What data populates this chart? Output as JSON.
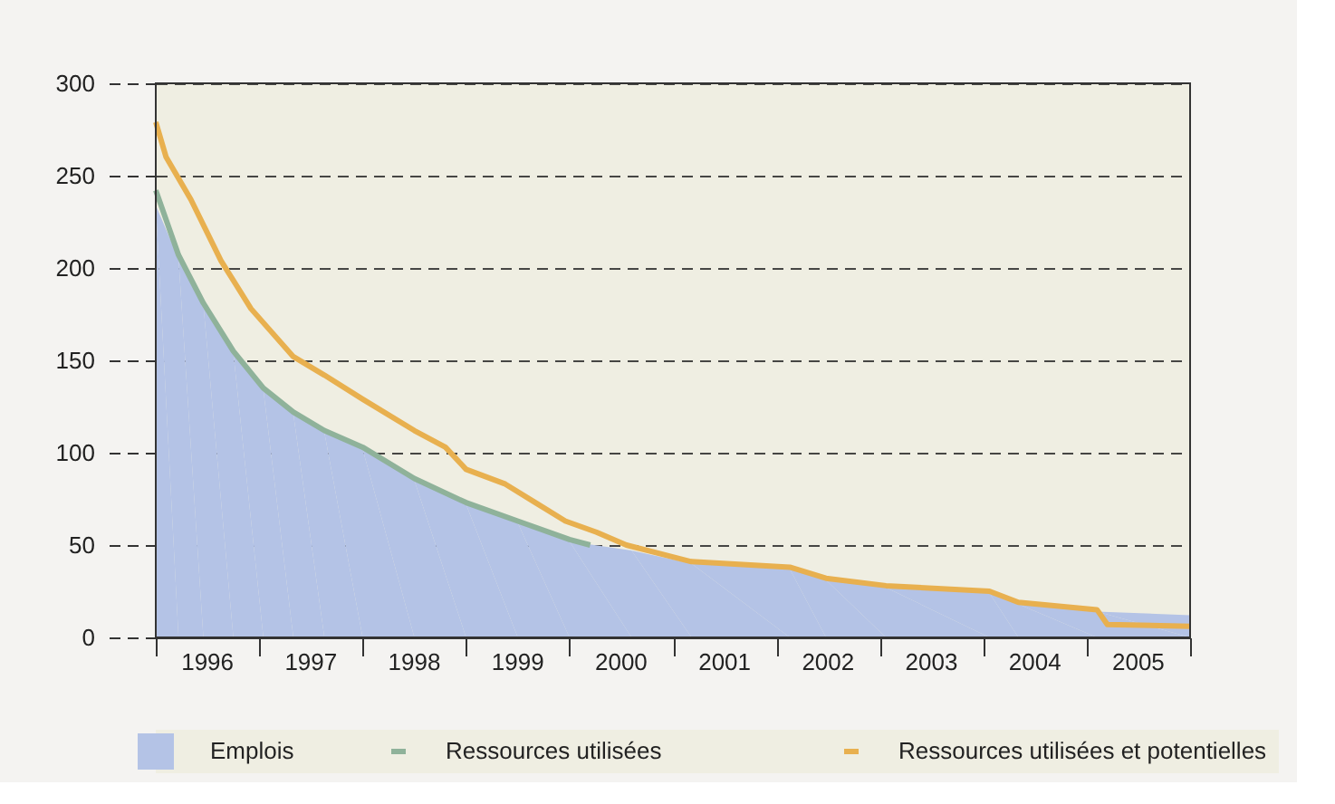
{
  "chart_data": {
    "type": "area",
    "xlim": [
      1996,
      2006
    ],
    "xticks": [
      {
        "value": 1996,
        "label": null
      },
      {
        "value": 1996.5,
        "label": "1996"
      },
      {
        "value": 1997,
        "label": null
      },
      {
        "value": 1997.5,
        "label": "1997"
      },
      {
        "value": 1998,
        "label": null
      },
      {
        "value": 1998.5,
        "label": "1998"
      },
      {
        "value": 1999,
        "label": null
      },
      {
        "value": 1999.5,
        "label": "1999"
      },
      {
        "value": 2000,
        "label": null
      },
      {
        "value": 2000.5,
        "label": "2000"
      },
      {
        "value": 2001,
        "label": null
      },
      {
        "value": 2001.5,
        "label": "2001"
      },
      {
        "value": 2002,
        "label": null
      },
      {
        "value": 2002.5,
        "label": "2002"
      },
      {
        "value": 2003,
        "label": null
      },
      {
        "value": 2003.5,
        "label": "2003"
      },
      {
        "value": 2004,
        "label": null
      },
      {
        "value": 2004.5,
        "label": "2004"
      },
      {
        "value": 2005,
        "label": null
      },
      {
        "value": 2005.5,
        "label": "2005"
      },
      {
        "value": 2006,
        "label": null
      }
    ],
    "ylim": [
      0,
      300
    ],
    "yticks": [
      0,
      50,
      100,
      150,
      200,
      250,
      300
    ],
    "grid": "y",
    "legend": "bottom",
    "series": [
      {
        "name": "Emplois",
        "color": "#b4c3e6",
        "x": [
          1996.0,
          1996.22,
          1996.46,
          1996.75,
          1997.04,
          1997.33,
          1997.63,
          1998.0,
          1998.5,
          1999.0,
          1999.5,
          2000.0,
          2000.6,
          2001.18,
          2002.13,
          2002.48,
          2003.06,
          2004.06,
          2004.34,
          2005.1,
          2006.0
        ],
        "values": [
          234,
          205,
          180,
          154,
          134,
          121,
          111,
          102,
          85,
          72,
          62,
          52,
          47,
          40,
          37,
          31,
          27,
          24,
          18,
          14,
          12
        ]
      },
      {
        "name": "Ressources utilisées",
        "type": "line",
        "color": "#8fb29a",
        "x": [
          1996.0,
          1996.22,
          1996.46,
          1996.75,
          1997.04,
          1997.33,
          1997.63,
          1998.0,
          1998.5,
          1999.0,
          1999.5,
          2000.0,
          2000.2
        ],
        "values": [
          242,
          207,
          181,
          155,
          135,
          122,
          112,
          103,
          86,
          73,
          63,
          53,
          50
        ]
      },
      {
        "name": "Ressources utilisées et potentielles",
        "type": "line",
        "color": "#e8b04f",
        "x": [
          1996.0,
          1996.1,
          1996.34,
          1996.63,
          1996.92,
          1997.33,
          1997.63,
          1998.0,
          1998.5,
          1998.8,
          1999.0,
          1999.38,
          1999.67,
          1999.96,
          2000.26,
          2000.55,
          2001.18,
          2002.13,
          2002.48,
          2003.06,
          2004.06,
          2004.34,
          2005.1,
          2005.2,
          2006.0
        ],
        "values": [
          279,
          260,
          237,
          204,
          178,
          152,
          142,
          129,
          112,
          103,
          91,
          83,
          73,
          63,
          57,
          50,
          41,
          38,
          32,
          28,
          25,
          19,
          15,
          7,
          6
        ]
      }
    ]
  }
}
